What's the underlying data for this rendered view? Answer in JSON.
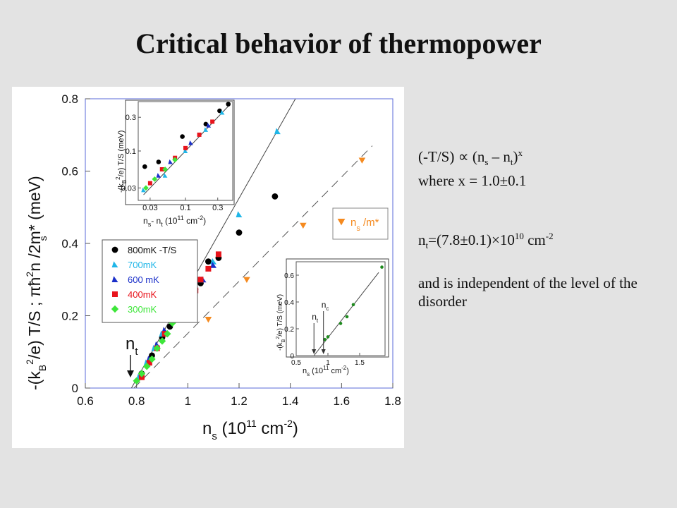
{
  "slide": {
    "title": "Critical behavior of thermopower",
    "formula_lhs": "(-T/S) ∝ (n",
    "formula_sub_s": "s",
    "formula_mid": " – n",
    "formula_sub_t": "t",
    "formula_close": ")",
    "formula_exp": "x",
    "where_text": "where  x = 1.0±0.1",
    "nt_prefix": "n",
    "nt_sub": "t",
    "nt_value": "=(7.8±0.1)×10",
    "nt_exp": "10",
    "nt_unit": " cm",
    "nt_unit_exp": "-2",
    "independent_text": "and is independent of the level of the disorder"
  },
  "chart_data": [
    {
      "type": "scatter",
      "xlabel_prefix": "n",
      "xlabel_sub": "s",
      "xlabel_rest": " (10",
      "xlabel_sup1": "11",
      "xlabel_mid": " cm",
      "xlabel_sup2": "-2",
      "xlabel_close": ")",
      "ylabel_prefix": "-(k",
      "ylabel_sub": "B",
      "ylabel_sup": "2",
      "ylabel_rest": "/e) T/S ;   πħ",
      "ylabel_sup2": "2",
      "ylabel_rest2": "n /2m* (meV)",
      "ylabel_sub2": "s",
      "xlim": [
        0.6,
        1.8
      ],
      "ylim": [
        0,
        0.8
      ],
      "xticks": [
        "0.6",
        "0.8",
        "1",
        "1.2",
        "1.4",
        "1.6",
        "1.8"
      ],
      "yticks": [
        "0",
        "0.2",
        "0.4",
        "0.6",
        "0.8"
      ],
      "annotation_nt": "n",
      "annotation_nt_sub": "t",
      "legend": [
        {
          "label": "800mK  -T/S",
          "color": "#000000",
          "marker": "circle"
        },
        {
          "label": "700mK",
          "color": "#1fb6e8",
          "marker": "triangle"
        },
        {
          "label": "600 mK",
          "color": "#1a2fc9",
          "marker": "triangle"
        },
        {
          "label": "400mK",
          "color": "#e8141c",
          "marker": "square"
        },
        {
          "label": "300mK",
          "color": "#3ee63a",
          "marker": "diamond"
        }
      ],
      "legend2": {
        "label": "n /m*",
        "label_sub": "s",
        "color": "#f58a1f",
        "marker": "down-triangle"
      },
      "fit_solid": {
        "x": [
          0.78,
          1.42
        ],
        "y": [
          0,
          0.8
        ]
      },
      "fit_dashed": {
        "x": [
          0.79,
          1.72
        ],
        "y": [
          0,
          0.67
        ]
      },
      "series": [
        {
          "name": "800mK  -T/S",
          "color": "#000000",
          "marker": "circle",
          "points": [
            [
              0.82,
              0.04
            ],
            [
              0.86,
              0.09
            ],
            [
              0.9,
              0.14
            ],
            [
              0.93,
              0.17
            ],
            [
              0.96,
              0.21
            ],
            [
              0.98,
              0.24
            ],
            [
              1.0,
              0.26
            ],
            [
              1.02,
              0.28
            ],
            [
              1.05,
              0.29
            ],
            [
              1.08,
              0.35
            ],
            [
              1.12,
              0.36
            ],
            [
              1.2,
              0.43
            ],
            [
              1.34,
              0.53
            ]
          ]
        },
        {
          "name": "700mK",
          "color": "#1fb6e8",
          "marker": "triangle",
          "points": [
            [
              0.81,
              0.03
            ],
            [
              0.84,
              0.07
            ],
            [
              0.87,
              0.11
            ],
            [
              0.9,
              0.15
            ],
            [
              0.93,
              0.19
            ],
            [
              0.96,
              0.22
            ],
            [
              0.99,
              0.25
            ],
            [
              1.02,
              0.27
            ],
            [
              1.05,
              0.3
            ],
            [
              1.1,
              0.35
            ],
            [
              1.2,
              0.48
            ],
            [
              1.35,
              0.71
            ]
          ]
        },
        {
          "name": "600 mK",
          "color": "#1a2fc9",
          "marker": "triangle",
          "points": [
            [
              0.82,
              0.04
            ],
            [
              0.85,
              0.08
            ],
            [
              0.88,
              0.12
            ],
            [
              0.91,
              0.16
            ],
            [
              0.94,
              0.2
            ],
            [
              0.97,
              0.23
            ],
            [
              1.0,
              0.26
            ],
            [
              1.03,
              0.28
            ],
            [
              1.06,
              0.3
            ],
            [
              1.1,
              0.34
            ]
          ]
        },
        {
          "name": "400mK",
          "color": "#e8141c",
          "marker": "square",
          "points": [
            [
              0.82,
              0.03
            ],
            [
              0.85,
              0.07
            ],
            [
              0.88,
              0.11
            ],
            [
              0.91,
              0.15
            ],
            [
              0.94,
              0.19
            ],
            [
              0.97,
              0.23
            ],
            [
              0.99,
              0.25
            ],
            [
              1.01,
              0.27
            ],
            [
              1.03,
              0.27
            ],
            [
              1.05,
              0.3
            ],
            [
              1.08,
              0.33
            ],
            [
              1.12,
              0.37
            ]
          ]
        },
        {
          "name": "300mK",
          "color": "#3ee63a",
          "marker": "diamond",
          "points": [
            [
              0.8,
              0.02
            ],
            [
              0.82,
              0.04
            ],
            [
              0.84,
              0.06
            ],
            [
              0.86,
              0.08
            ],
            [
              0.88,
              0.11
            ],
            [
              0.9,
              0.13
            ],
            [
              0.92,
              0.15
            ],
            [
              0.94,
              0.18
            ],
            [
              0.97,
              0.21
            ]
          ]
        },
        {
          "name": "n /m*",
          "color": "#f58a1f",
          "marker": "down-triangle",
          "points": [
            [
              1.08,
              0.19
            ],
            [
              1.23,
              0.3
            ],
            [
              1.45,
              0.45
            ],
            [
              1.68,
              0.63
            ]
          ]
        }
      ]
    },
    {
      "type": "scatter",
      "inset": "upper-left",
      "xscale": "log",
      "yscale": "log",
      "xlim": [
        0.02,
        0.5
      ],
      "ylim": [
        0.02,
        0.5
      ],
      "xticks": [
        "0.03",
        "0.1",
        "0.3"
      ],
      "yticks": [
        "0.03",
        "0.1",
        "0.3"
      ],
      "xlabel_prefix": "n",
      "xlabel_sub1": "s",
      "xlabel_mid": "- n",
      "xlabel_sub2": "t",
      "xlabel_rest": " (10",
      "xlabel_sup1": "11",
      "xlabel_unit": " cm",
      "xlabel_sup2": "-2",
      "xlabel_close": ")",
      "ylabel_prefix": "-(k",
      "ylabel_sub": "B",
      "ylabel_sup": "2",
      "ylabel_rest": "/e) T/S (meV)",
      "series": [
        {
          "name": "800mK  -T/S",
          "color": "#000000",
          "points": [
            [
              0.025,
              0.06
            ],
            [
              0.04,
              0.07
            ],
            [
              0.09,
              0.16
            ],
            [
              0.2,
              0.24
            ],
            [
              0.32,
              0.37
            ],
            [
              0.43,
              0.46
            ]
          ]
        },
        {
          "name": "700mK",
          "color": "#1fb6e8",
          "points": [
            [
              0.024,
              0.028
            ],
            [
              0.05,
              0.045
            ],
            [
              0.1,
              0.1
            ],
            [
              0.2,
              0.2
            ],
            [
              0.35,
              0.35
            ]
          ]
        },
        {
          "name": "600 mK",
          "color": "#1a2fc9",
          "points": [
            [
              0.04,
              0.045
            ],
            [
              0.06,
              0.07
            ],
            [
              0.12,
              0.13
            ],
            [
              0.22,
              0.23
            ]
          ]
        },
        {
          "name": "400mK",
          "color": "#e8141c",
          "points": [
            [
              0.03,
              0.035
            ],
            [
              0.045,
              0.055
            ],
            [
              0.07,
              0.08
            ],
            [
              0.1,
              0.11
            ],
            [
              0.16,
              0.17
            ],
            [
              0.25,
              0.26
            ]
          ]
        },
        {
          "name": "300mK",
          "color": "#3ee63a",
          "points": [
            [
              0.026,
              0.03
            ],
            [
              0.035,
              0.04
            ],
            [
              0.05,
              0.055
            ],
            [
              0.07,
              0.075
            ]
          ]
        }
      ],
      "fit": {
        "x": [
          0.024,
          0.46
        ],
        "y": [
          0.024,
          0.46
        ]
      }
    },
    {
      "type": "scatter",
      "inset": "lower-right",
      "xlim": [
        0.5,
        1.9
      ],
      "ylim": [
        0,
        0.7
      ],
      "xticks": [
        "0.5",
        "1",
        "1.5"
      ],
      "yticks": [
        "0",
        "0.2",
        "0.4",
        "0.6"
      ],
      "xlabel_prefix": "n",
      "xlabel_sub": "s",
      "xlabel_rest": " (10",
      "xlabel_sup1": "11",
      "xlabel_unit": " cm",
      "xlabel_sup2": "-2",
      "xlabel_close": ")",
      "ylabel_prefix": "-(k",
      "ylabel_sub": "B",
      "ylabel_sup": "2",
      "ylabel_rest": "/e) T/S (meV)",
      "annotation_nt": "n",
      "annotation_nt_sub": "t",
      "annotation_nc": "n",
      "annotation_nc_sub": "c",
      "series": [
        {
          "name": "",
          "color": "#1e8a1e",
          "points": [
            [
              0.95,
              0.12
            ],
            [
              1.0,
              0.14
            ],
            [
              1.2,
              0.24
            ],
            [
              1.3,
              0.29
            ],
            [
              1.4,
              0.38
            ],
            [
              1.85,
              0.66
            ]
          ]
        }
      ],
      "fit": {
        "x": [
          0.78,
          1.8
        ],
        "y": [
          0,
          0.62
        ]
      }
    }
  ]
}
